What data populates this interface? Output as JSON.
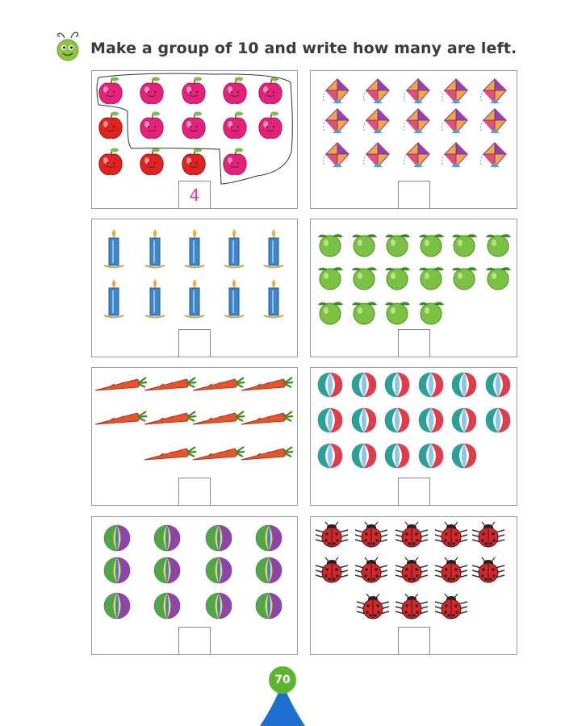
{
  "header": {
    "instruction": "Make a group of 10 and write how many are left.",
    "icon": "caterpillar-icon"
  },
  "panels": [
    {
      "item": "apple",
      "count": 14,
      "answer": "4",
      "grouped": 10
    },
    {
      "item": "kite",
      "count": 15,
      "answer": ""
    },
    {
      "item": "candle",
      "count": 10,
      "answer": ""
    },
    {
      "item": "guava",
      "count": 16,
      "answer": ""
    },
    {
      "item": "carrot",
      "count": 11,
      "answer": ""
    },
    {
      "item": "beach-ball",
      "count": 17,
      "answer": ""
    },
    {
      "item": "ball",
      "count": 12,
      "answer": ""
    },
    {
      "item": "ladybug",
      "count": 13,
      "answer": ""
    }
  ],
  "footer": {
    "page_number": "70"
  },
  "colors": {
    "green": "#5bb52f",
    "blue": "#1f6fd1",
    "pink": "#e8359a"
  }
}
